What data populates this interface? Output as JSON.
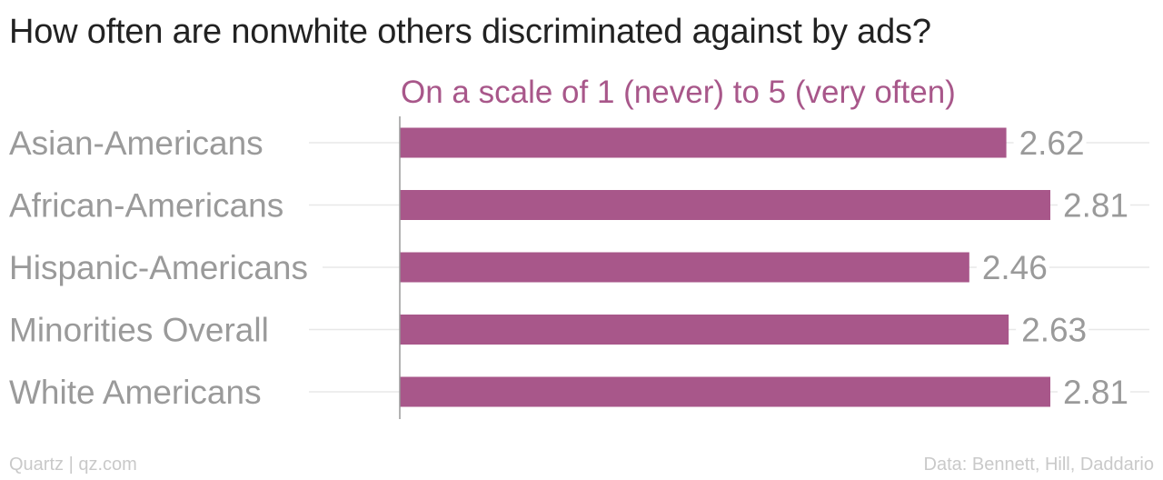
{
  "title": "How often are nonwhite others discriminated against by ads?",
  "footer": {
    "source_left": "Quartz | qz.com",
    "source_right": "Data: Bennett, Hill, Daddario"
  },
  "colors": {
    "bar": "#a8578a",
    "subtitle": "#a8578a",
    "category_label": "#9a9a9a",
    "value_label": "#9a9a9a",
    "gridline": "#e8e8e8",
    "axis": "#999999"
  },
  "chart_data": {
    "type": "bar",
    "orientation": "horizontal",
    "subtitle": "On a scale of 1 (never) to 5 (very often)",
    "categories": [
      "Asian-Americans",
      "African-Americans",
      "Hispanic-Americans",
      "Minorities Overall",
      "White Americans"
    ],
    "values": [
      2.62,
      2.81,
      2.46,
      2.63,
      2.81
    ],
    "xlim": [
      0,
      2.81
    ],
    "grid": true,
    "legend": "none"
  }
}
